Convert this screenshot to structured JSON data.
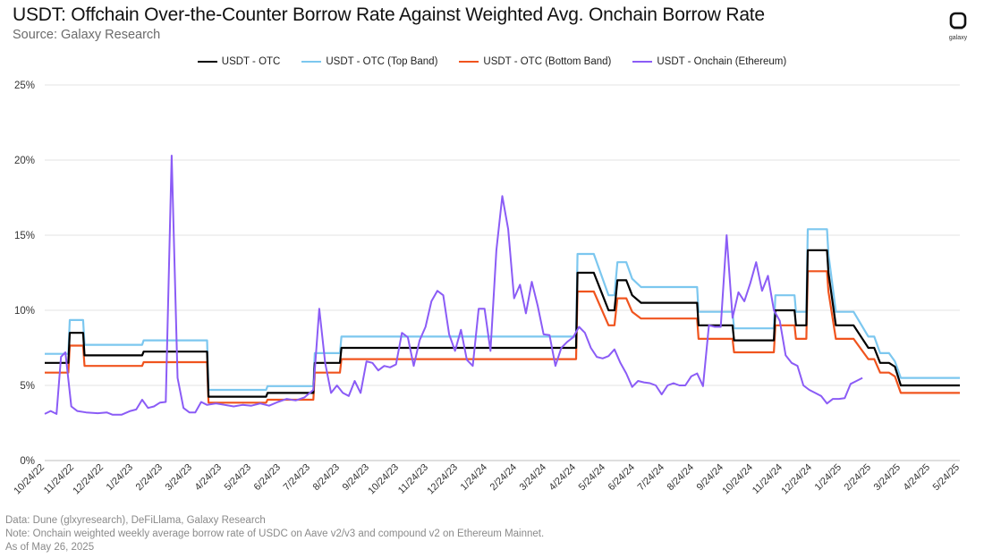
{
  "header": {
    "title": "USDT: Offchain Over-the-Counter Borrow Rate Against Weighted Avg. Onchain Borrow Rate",
    "subtitle": "Source: Galaxy Research",
    "logo_text": "galaxy"
  },
  "footer": {
    "line1": "Data: Dune (glxyresearch), DeFiLlama, Galaxy Research",
    "line2": "Note: Onchain weighted weekly average borrow rate of USDC on Aave v2/v3 and compound v2 on Ethereum Mainnet.",
    "line3": "As of May 26, 2025"
  },
  "colors": {
    "otc": "#000000",
    "top_band": "#7cc7ef",
    "bottom_band": "#f0541e",
    "onchain": "#8b5cf6",
    "grid": "#e3e3e3"
  },
  "chart_data": {
    "type": "line",
    "title": "USDT: Offchain Over-the-Counter Borrow Rate Against Weighted Avg. Onchain Borrow Rate",
    "xlabel": "",
    "ylabel": "",
    "y_tick_labels": [
      "0%",
      "5%",
      "10%",
      "15%",
      "20%",
      "25%"
    ],
    "y_ticks": [
      0,
      5,
      10,
      15,
      20,
      25
    ],
    "ylim": [
      0,
      25
    ],
    "x_tick_labels": [
      "10/24/22",
      "11/24/22",
      "12/24/22",
      "1/24/23",
      "2/24/23",
      "3/24/23",
      "4/24/23",
      "5/24/23",
      "6/24/23",
      "7/24/23",
      "8/24/23",
      "9/24/23",
      "10/24/23",
      "11/24/23",
      "12/24/23",
      "1/24/24",
      "2/24/24",
      "3/24/24",
      "4/24/24",
      "5/24/24",
      "6/24/24",
      "7/24/24",
      "8/24/24",
      "9/24/24",
      "10/24/24",
      "11/24/24",
      "12/24/24",
      "1/24/25",
      "2/24/25",
      "3/24/25",
      "4/24/25",
      "5/24/25"
    ],
    "xlim": [
      0,
      31
    ],
    "grid": "horizontal",
    "legend_position": "top-center",
    "series": [
      {
        "name": "USDT - OTC",
        "key": "otc",
        "points": [
          [
            0,
            6.5
          ],
          [
            0.8,
            6.5
          ],
          [
            0.85,
            8.5
          ],
          [
            1.3,
            8.5
          ],
          [
            1.35,
            7.0
          ],
          [
            3.3,
            7.0
          ],
          [
            3.35,
            7.25
          ],
          [
            5.5,
            7.25
          ],
          [
            5.55,
            4.25
          ],
          [
            7.5,
            4.25
          ],
          [
            7.55,
            4.5
          ],
          [
            9.1,
            4.5
          ],
          [
            9.15,
            6.5
          ],
          [
            10.0,
            6.5
          ],
          [
            10.05,
            7.5
          ],
          [
            18.0,
            7.5
          ],
          [
            18.05,
            12.5
          ],
          [
            18.6,
            12.5
          ],
          [
            18.9,
            11.0
          ],
          [
            19.1,
            10.0
          ],
          [
            19.3,
            10.0
          ],
          [
            19.4,
            12.0
          ],
          [
            19.7,
            12.0
          ],
          [
            19.9,
            11.0
          ],
          [
            20.2,
            10.5
          ],
          [
            22.1,
            10.5
          ],
          [
            22.15,
            9.0
          ],
          [
            23.3,
            9.0
          ],
          [
            23.35,
            8.0
          ],
          [
            24.7,
            8.0
          ],
          [
            24.75,
            10.0
          ],
          [
            25.4,
            10.0
          ],
          [
            25.45,
            9.0
          ],
          [
            25.8,
            9.0
          ],
          [
            25.85,
            14.0
          ],
          [
            26.5,
            14.0
          ],
          [
            26.55,
            12.5
          ],
          [
            26.8,
            9.0
          ],
          [
            27.4,
            9.0
          ],
          [
            27.9,
            7.5
          ],
          [
            28.1,
            7.5
          ],
          [
            28.3,
            6.5
          ],
          [
            28.6,
            6.5
          ],
          [
            28.8,
            6.25
          ],
          [
            29.0,
            5.0
          ],
          [
            31,
            5.0
          ]
        ]
      },
      {
        "name": "USDT - OTC (Top Band)",
        "key": "top_band",
        "points": [
          [
            0,
            7.1
          ],
          [
            0.8,
            7.1
          ],
          [
            0.85,
            9.35
          ],
          [
            1.3,
            9.35
          ],
          [
            1.35,
            7.7
          ],
          [
            3.3,
            7.7
          ],
          [
            3.35,
            8.0
          ],
          [
            5.5,
            8.0
          ],
          [
            5.55,
            4.7
          ],
          [
            7.5,
            4.7
          ],
          [
            7.55,
            4.95
          ],
          [
            9.1,
            4.95
          ],
          [
            9.15,
            7.15
          ],
          [
            10.0,
            7.15
          ],
          [
            10.05,
            8.25
          ],
          [
            18.0,
            8.25
          ],
          [
            18.05,
            13.75
          ],
          [
            18.6,
            13.75
          ],
          [
            18.9,
            12.1
          ],
          [
            19.1,
            11.0
          ],
          [
            19.3,
            11.0
          ],
          [
            19.4,
            13.2
          ],
          [
            19.7,
            13.2
          ],
          [
            19.9,
            12.1
          ],
          [
            20.2,
            11.55
          ],
          [
            22.1,
            11.55
          ],
          [
            22.15,
            9.9
          ],
          [
            23.3,
            9.9
          ],
          [
            23.35,
            8.8
          ],
          [
            24.7,
            8.8
          ],
          [
            24.75,
            11.0
          ],
          [
            25.4,
            11.0
          ],
          [
            25.45,
            9.9
          ],
          [
            25.8,
            9.9
          ],
          [
            25.85,
            15.4
          ],
          [
            26.5,
            15.4
          ],
          [
            26.55,
            13.75
          ],
          [
            26.8,
            9.9
          ],
          [
            27.4,
            9.9
          ],
          [
            27.9,
            8.25
          ],
          [
            28.1,
            8.25
          ],
          [
            28.3,
            7.15
          ],
          [
            28.6,
            7.15
          ],
          [
            28.8,
            6.6
          ],
          [
            29.0,
            5.5
          ],
          [
            31,
            5.5
          ]
        ]
      },
      {
        "name": "USDT - OTC (Bottom Band)",
        "key": "bottom_band",
        "points": [
          [
            0,
            5.85
          ],
          [
            0.8,
            5.85
          ],
          [
            0.85,
            7.65
          ],
          [
            1.3,
            7.65
          ],
          [
            1.35,
            6.3
          ],
          [
            3.3,
            6.3
          ],
          [
            3.35,
            6.55
          ],
          [
            5.5,
            6.55
          ],
          [
            5.55,
            3.85
          ],
          [
            7.5,
            3.85
          ],
          [
            7.55,
            4.05
          ],
          [
            9.1,
            4.05
          ],
          [
            9.15,
            5.85
          ],
          [
            10.0,
            5.85
          ],
          [
            10.05,
            6.75
          ],
          [
            18.0,
            6.75
          ],
          [
            18.05,
            11.25
          ],
          [
            18.6,
            11.25
          ],
          [
            18.9,
            9.9
          ],
          [
            19.1,
            9.0
          ],
          [
            19.3,
            9.0
          ],
          [
            19.4,
            10.8
          ],
          [
            19.7,
            10.8
          ],
          [
            19.9,
            9.9
          ],
          [
            20.2,
            9.45
          ],
          [
            22.1,
            9.45
          ],
          [
            22.15,
            8.1
          ],
          [
            23.3,
            8.1
          ],
          [
            23.35,
            7.2
          ],
          [
            24.7,
            7.2
          ],
          [
            24.75,
            9.0
          ],
          [
            25.4,
            9.0
          ],
          [
            25.45,
            8.1
          ],
          [
            25.8,
            8.1
          ],
          [
            25.85,
            12.6
          ],
          [
            26.5,
            12.6
          ],
          [
            26.55,
            11.25
          ],
          [
            26.8,
            8.1
          ],
          [
            27.4,
            8.1
          ],
          [
            27.9,
            6.75
          ],
          [
            28.1,
            6.75
          ],
          [
            28.3,
            5.85
          ],
          [
            28.6,
            5.85
          ],
          [
            28.8,
            5.6
          ],
          [
            29.0,
            4.5
          ],
          [
            31,
            4.5
          ]
        ]
      },
      {
        "name": "USDT - Onchain (Ethereum)",
        "key": "onchain",
        "points": [
          [
            0,
            3.1
          ],
          [
            0.2,
            3.3
          ],
          [
            0.4,
            3.1
          ],
          [
            0.55,
            6.9
          ],
          [
            0.7,
            7.2
          ],
          [
            0.9,
            3.6
          ],
          [
            1.1,
            3.3
          ],
          [
            1.4,
            3.2
          ],
          [
            1.8,
            3.15
          ],
          [
            2.1,
            3.2
          ],
          [
            2.3,
            3.05
          ],
          [
            2.6,
            3.05
          ],
          [
            2.9,
            3.3
          ],
          [
            3.1,
            3.4
          ],
          [
            3.3,
            4.05
          ],
          [
            3.5,
            3.5
          ],
          [
            3.7,
            3.6
          ],
          [
            3.9,
            3.85
          ],
          [
            4.1,
            3.9
          ],
          [
            4.3,
            20.3
          ],
          [
            4.5,
            5.5
          ],
          [
            4.7,
            3.5
          ],
          [
            4.9,
            3.2
          ],
          [
            5.1,
            3.2
          ],
          [
            5.3,
            3.9
          ],
          [
            5.5,
            3.7
          ],
          [
            5.8,
            3.8
          ],
          [
            6.1,
            3.7
          ],
          [
            6.4,
            3.6
          ],
          [
            6.7,
            3.7
          ],
          [
            7.0,
            3.65
          ],
          [
            7.3,
            3.8
          ],
          [
            7.6,
            3.65
          ],
          [
            7.9,
            3.9
          ],
          [
            8.2,
            4.1
          ],
          [
            8.5,
            4.0
          ],
          [
            8.8,
            4.2
          ],
          [
            9.1,
            4.7
          ],
          [
            9.3,
            10.1
          ],
          [
            9.5,
            6.5
          ],
          [
            9.7,
            4.5
          ],
          [
            9.9,
            5.0
          ],
          [
            10.1,
            4.5
          ],
          [
            10.3,
            4.3
          ],
          [
            10.5,
            5.3
          ],
          [
            10.7,
            4.5
          ],
          [
            10.9,
            6.6
          ],
          [
            11.1,
            6.5
          ],
          [
            11.3,
            6.0
          ],
          [
            11.5,
            6.3
          ],
          [
            11.7,
            6.2
          ],
          [
            11.9,
            6.4
          ],
          [
            12.1,
            8.5
          ],
          [
            12.3,
            8.2
          ],
          [
            12.5,
            6.3
          ],
          [
            12.7,
            8.0
          ],
          [
            12.9,
            8.9
          ],
          [
            13.1,
            10.6
          ],
          [
            13.3,
            11.3
          ],
          [
            13.5,
            11.0
          ],
          [
            13.7,
            8.4
          ],
          [
            13.9,
            7.3
          ],
          [
            14.1,
            8.7
          ],
          [
            14.3,
            6.7
          ],
          [
            14.5,
            6.3
          ],
          [
            14.7,
            10.1
          ],
          [
            14.9,
            10.1
          ],
          [
            15.1,
            7.3
          ],
          [
            15.3,
            14.0
          ],
          [
            15.5,
            17.6
          ],
          [
            15.7,
            15.4
          ],
          [
            15.9,
            10.8
          ],
          [
            16.1,
            11.7
          ],
          [
            16.3,
            9.8
          ],
          [
            16.5,
            11.9
          ],
          [
            16.7,
            10.3
          ],
          [
            16.9,
            8.4
          ],
          [
            17.1,
            8.35
          ],
          [
            17.3,
            6.3
          ],
          [
            17.5,
            7.5
          ],
          [
            17.7,
            7.9
          ],
          [
            17.9,
            8.2
          ],
          [
            18.1,
            8.9
          ],
          [
            18.3,
            8.5
          ],
          [
            18.5,
            7.5
          ],
          [
            18.7,
            6.9
          ],
          [
            18.9,
            6.8
          ],
          [
            19.1,
            6.95
          ],
          [
            19.3,
            7.4
          ],
          [
            19.5,
            6.5
          ],
          [
            19.7,
            5.8
          ],
          [
            19.9,
            4.9
          ],
          [
            20.1,
            5.3
          ],
          [
            20.3,
            5.2
          ],
          [
            20.5,
            5.15
          ],
          [
            20.7,
            5.0
          ],
          [
            20.9,
            4.4
          ],
          [
            21.1,
            5.0
          ],
          [
            21.3,
            5.15
          ],
          [
            21.5,
            5.0
          ],
          [
            21.7,
            5.0
          ],
          [
            21.9,
            5.6
          ],
          [
            22.1,
            5.8
          ],
          [
            22.3,
            4.95
          ],
          [
            22.5,
            9.0
          ],
          [
            22.7,
            8.9
          ],
          [
            22.9,
            8.9
          ],
          [
            23.1,
            15.0
          ],
          [
            23.3,
            9.5
          ],
          [
            23.5,
            11.2
          ],
          [
            23.7,
            10.6
          ],
          [
            23.9,
            11.8
          ],
          [
            24.1,
            13.2
          ],
          [
            24.3,
            11.3
          ],
          [
            24.5,
            12.3
          ],
          [
            24.7,
            10.0
          ],
          [
            24.9,
            9.3
          ],
          [
            25.1,
            7.0
          ],
          [
            25.3,
            6.5
          ],
          [
            25.5,
            6.3
          ],
          [
            25.7,
            5.0
          ],
          [
            25.9,
            4.7
          ],
          [
            26.1,
            4.5
          ],
          [
            26.3,
            4.3
          ],
          [
            26.5,
            3.8
          ],
          [
            26.7,
            4.1
          ],
          [
            26.9,
            4.1
          ],
          [
            27.1,
            4.15
          ],
          [
            27.3,
            5.1
          ],
          [
            27.5,
            5.3
          ],
          [
            27.7,
            5.5
          ]
        ]
      }
    ]
  }
}
